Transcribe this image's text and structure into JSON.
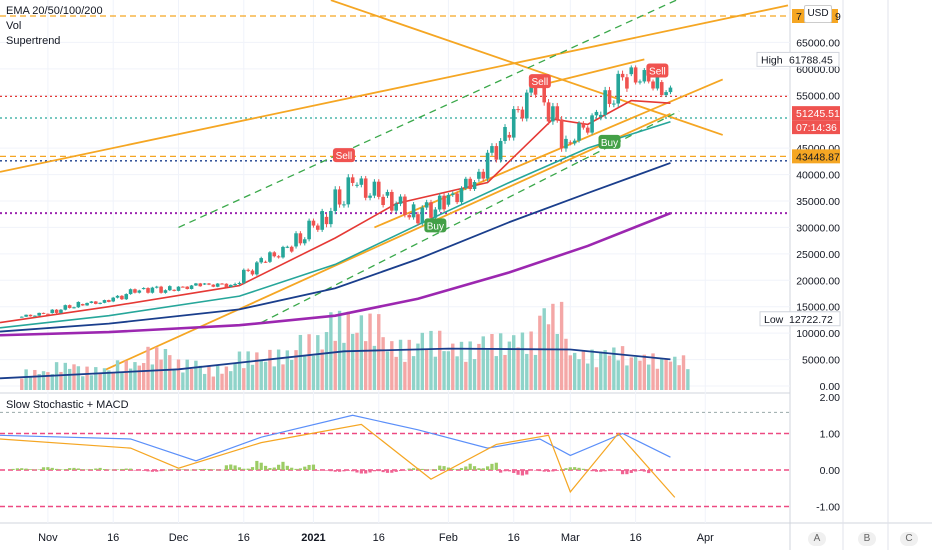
{
  "indicators": {
    "ema": "EMA 20/50/100/200",
    "vol": "Vol",
    "supertrend": "Supertrend",
    "lower_pane": "Slow Stochastic + MACD"
  },
  "currency": "USD",
  "axis_footer": [
    "A",
    "B",
    "C"
  ],
  "price_tags": {
    "top_label": "7",
    "top_label_tail": "9",
    "high_label": "High",
    "high_value": "61788.45",
    "current_price": "51245.51",
    "countdown": "07:14:36",
    "support": "43448.87",
    "low_label": "Low",
    "low_value": "12722.72"
  },
  "signals": [
    {
      "text": "Sell",
      "date": "2021-01-08",
      "price": 43500
    },
    {
      "text": "Buy",
      "date": "2021-01-29",
      "price": 30200
    },
    {
      "text": "Sell",
      "date": "2021-02-22",
      "price": 57500
    },
    {
      "text": "Buy",
      "date": "2021-03-10",
      "price": 46000
    },
    {
      "text": "Sell",
      "date": "2021-03-21",
      "price": 59500
    }
  ],
  "colors": {
    "up": "#26a69a",
    "down": "#ef5350",
    "ema20": "#e53935",
    "ema50": "#26a69a",
    "ema100": "#1a3e8c",
    "ema200": "#9c27b0",
    "trendline": "#f5a623",
    "channel": "#3aa84a",
    "support": "#f5a623"
  },
  "chart_data": [
    {
      "type": "candlestick",
      "title": "",
      "x_tick_labels": [
        "Nov",
        "16",
        "Dec",
        "16",
        "2021",
        "16",
        "Feb",
        "16",
        "Mar",
        "16",
        "Apr"
      ],
      "y_tick_labels": [
        "0.00",
        "5000.00",
        "10000.00",
        "15000.00",
        "20000.00",
        "25000.00",
        "30000.00",
        "35000.00",
        "40000.00",
        "45000.00",
        "55000.00",
        "60000.00",
        "65000.00"
      ],
      "ylim": [
        0,
        70000
      ],
      "xlim": [
        "2020-10-21",
        "2021-04-20"
      ],
      "grid": true,
      "ohlc_weekly": [
        {
          "date": "2020-10-26",
          "open": 13000,
          "high": 14100,
          "low": 12900,
          "close": 13800
        },
        {
          "date": "2020-11-02",
          "open": 13800,
          "high": 15900,
          "low": 13500,
          "close": 15500
        },
        {
          "date": "2020-11-09",
          "open": 15500,
          "high": 16400,
          "low": 14900,
          "close": 16000
        },
        {
          "date": "2020-11-16",
          "open": 16000,
          "high": 18800,
          "low": 15900,
          "close": 18400
        },
        {
          "date": "2020-11-23",
          "open": 18400,
          "high": 19500,
          "low": 16300,
          "close": 18200
        },
        {
          "date": "2020-11-30",
          "open": 18200,
          "high": 19900,
          "low": 18000,
          "close": 19200
        },
        {
          "date": "2020-12-07",
          "open": 19200,
          "high": 19400,
          "low": 17600,
          "close": 19100
        },
        {
          "date": "2020-12-14",
          "open": 19100,
          "high": 24200,
          "low": 19000,
          "close": 23500
        },
        {
          "date": "2020-12-21",
          "open": 23500,
          "high": 27000,
          "low": 22600,
          "close": 26400
        },
        {
          "date": "2020-12-28",
          "open": 26400,
          "high": 34000,
          "low": 26000,
          "close": 32000
        },
        {
          "date": "2021-01-04",
          "open": 32000,
          "high": 42000,
          "low": 30000,
          "close": 38000
        },
        {
          "date": "2021-01-11",
          "open": 38000,
          "high": 40000,
          "low": 30500,
          "close": 36000
        },
        {
          "date": "2021-01-18",
          "open": 36000,
          "high": 37800,
          "low": 29000,
          "close": 32500
        },
        {
          "date": "2021-01-25",
          "open": 32500,
          "high": 38500,
          "low": 29500,
          "close": 34300
        },
        {
          "date": "2021-02-01",
          "open": 34300,
          "high": 40900,
          "low": 33500,
          "close": 39200
        },
        {
          "date": "2021-02-08",
          "open": 39200,
          "high": 49000,
          "low": 38000,
          "close": 47500
        },
        {
          "date": "2021-02-15",
          "open": 47500,
          "high": 58300,
          "low": 47000,
          "close": 57300
        },
        {
          "date": "2021-02-22",
          "open": 57300,
          "high": 57500,
          "low": 44900,
          "close": 46100
        },
        {
          "date": "2021-03-01",
          "open": 46100,
          "high": 52600,
          "low": 45000,
          "close": 50900
        },
        {
          "date": "2021-03-08",
          "open": 50900,
          "high": 61700,
          "low": 49200,
          "close": 59000
        },
        {
          "date": "2021-03-15",
          "open": 59000,
          "high": 60500,
          "low": 53000,
          "close": 57500
        },
        {
          "date": "2021-03-22",
          "open": 57500,
          "high": 58200,
          "low": 50500,
          "close": 51245.51
        }
      ],
      "series": [
        {
          "name": "EMA 20",
          "points": [
            [
              "2020-10-21",
              12000
            ],
            [
              "2020-11-15",
              15000
            ],
            [
              "2020-12-15",
              19000
            ],
            [
              "2021-01-06",
              28000
            ],
            [
              "2021-01-20",
              34500
            ],
            [
              "2021-02-10",
              38500
            ],
            [
              "2021-02-25",
              50500
            ],
            [
              "2021-03-05",
              49500
            ],
            [
              "2021-03-15",
              54000
            ],
            [
              "2021-03-24",
              53500
            ]
          ]
        },
        {
          "name": "EMA 50",
          "points": [
            [
              "2020-10-21",
              11000
            ],
            [
              "2020-11-15",
              13300
            ],
            [
              "2020-12-15",
              17000
            ],
            [
              "2021-01-06",
              23000
            ],
            [
              "2021-01-25",
              30500
            ],
            [
              "2021-02-15",
              38500
            ],
            [
              "2021-03-05",
              45000
            ],
            [
              "2021-03-24",
              50000
            ]
          ]
        },
        {
          "name": "EMA 100",
          "points": [
            [
              "2020-10-21",
              10300
            ],
            [
              "2020-11-15",
              11800
            ],
            [
              "2020-12-15",
              14500
            ],
            [
              "2021-01-06",
              18500
            ],
            [
              "2021-01-25",
              24000
            ],
            [
              "2021-02-15",
              31000
            ],
            [
              "2021-03-05",
              36500
            ],
            [
              "2021-03-24",
              42200
            ]
          ]
        },
        {
          "name": "EMA 200",
          "points": [
            [
              "2020-10-21",
              9600
            ],
            [
              "2020-11-15",
              10200
            ],
            [
              "2020-12-15",
              11500
            ],
            [
              "2021-01-06",
              13300
            ],
            [
              "2021-01-25",
              16500
            ],
            [
              "2021-02-15",
              21500
            ],
            [
              "2021-03-05",
              26500
            ],
            [
              "2021-03-24",
              32700
            ]
          ]
        }
      ],
      "horizontal_levels": [
        {
          "value": 70000,
          "style": "dashed",
          "color": "#f5a623"
        },
        {
          "value": 54800,
          "style": "dotted",
          "color": "#e53935"
        },
        {
          "value": 50700,
          "style": "dotted",
          "color": "#26a69a"
        },
        {
          "value": 43448.87,
          "style": "dashed",
          "color": "#f5a623"
        },
        {
          "value": 42600,
          "style": "dotted",
          "color": "#1a3e8c"
        },
        {
          "value": 32700,
          "style": "dotted",
          "color": "#9c27b0"
        }
      ]
    },
    {
      "type": "bar",
      "title": "Vol",
      "ylim": [
        0,
        20000
      ],
      "y_tick_labels": [
        "0.00",
        "5000.00",
        "10000.00"
      ],
      "volume_weekly": [
        {
          "date": "2020-10-26",
          "value": 2300,
          "direction": "up"
        },
        {
          "date": "2020-11-02",
          "value": 3100,
          "direction": "up"
        },
        {
          "date": "2020-11-09",
          "value": 2600,
          "direction": "up"
        },
        {
          "date": "2020-11-16",
          "value": 3300,
          "direction": "up"
        },
        {
          "date": "2020-11-23",
          "value": 4800,
          "direction": "down"
        },
        {
          "date": "2020-11-30",
          "value": 3400,
          "direction": "up"
        },
        {
          "date": "2020-12-07",
          "value": 2700,
          "direction": "down"
        },
        {
          "date": "2020-12-14",
          "value": 4300,
          "direction": "up"
        },
        {
          "date": "2020-12-21",
          "value": 4500,
          "direction": "up"
        },
        {
          "date": "2020-12-28",
          "value": 6200,
          "direction": "up"
        },
        {
          "date": "2021-01-04",
          "value": 8800,
          "direction": "up"
        },
        {
          "date": "2021-01-11",
          "value": 8500,
          "direction": "down"
        },
        {
          "date": "2021-01-18",
          "value": 5600,
          "direction": "down"
        },
        {
          "date": "2021-01-25",
          "value": 6600,
          "direction": "up"
        },
        {
          "date": "2021-02-01",
          "value": 5400,
          "direction": "up"
        },
        {
          "date": "2021-02-08",
          "value": 6300,
          "direction": "up"
        },
        {
          "date": "2021-02-15",
          "value": 6500,
          "direction": "up"
        },
        {
          "date": "2021-02-22",
          "value": 9800,
          "direction": "down"
        },
        {
          "date": "2021-03-01",
          "value": 4500,
          "direction": "up"
        },
        {
          "date": "2021-03-08",
          "value": 4900,
          "direction": "up"
        },
        {
          "date": "2021-03-15",
          "value": 4100,
          "direction": "down"
        },
        {
          "date": "2021-03-22",
          "value": 3900,
          "direction": "down"
        }
      ],
      "moving_average": [
        [
          "2020-10-21",
          1300
        ],
        [
          "2020-12-01",
          2300
        ],
        [
          "2021-01-08",
          4300
        ],
        [
          "2021-02-01",
          4600
        ],
        [
          "2021-03-01",
          4500
        ],
        [
          "2021-03-24",
          3400
        ]
      ]
    },
    {
      "type": "line",
      "title": "Slow Stochastic + MACD",
      "y_tick_labels": [
        "2.00",
        "1.00",
        "0.00",
        "-1.00"
      ],
      "ylim": [
        -1.2,
        2.0
      ],
      "levels": [
        1.0,
        0.0,
        -1.0
      ],
      "series": [
        {
          "name": "",
          "points": [
            [
              "2020-10-21",
              0.95
            ],
            [
              "2020-11-20",
              0.85
            ],
            [
              "2020-12-05",
              0.25
            ],
            [
              "2020-12-20",
              0.9
            ],
            [
              "2021-01-10",
              1.5
            ],
            [
              "2021-01-25",
              1.1
            ],
            [
              "2021-02-10",
              0.6
            ],
            [
              "2021-02-22",
              0.85
            ],
            [
              "2021-03-01",
              0.4
            ],
            [
              "2021-03-13",
              1.0
            ],
            [
              "2021-03-24",
              0.35
            ]
          ]
        },
        {
          "name": "",
          "points": [
            [
              "2020-10-21",
              0.85
            ],
            [
              "2020-11-20",
              0.6
            ],
            [
              "2020-12-01",
              0.05
            ],
            [
              "2020-12-20",
              0.75
            ],
            [
              "2021-01-12",
              1.25
            ],
            [
              "2021-01-28",
              -0.25
            ],
            [
              "2021-02-12",
              0.7
            ],
            [
              "2021-02-24",
              0.95
            ],
            [
              "2021-03-01",
              -0.6
            ],
            [
              "2021-03-12",
              1.0
            ],
            [
              "2021-03-25",
              -0.75
            ]
          ]
        }
      ],
      "histogram": [
        0.05,
        0.08,
        0.06,
        0.04,
        -0.05,
        0.02,
        0.03,
        0.15,
        0.25,
        0.15,
        -0.05,
        -0.1,
        -0.08,
        0.05,
        0.12,
        0.2,
        -0.15,
        -0.05,
        0.08,
        -0.05,
        -0.12
      ]
    }
  ]
}
